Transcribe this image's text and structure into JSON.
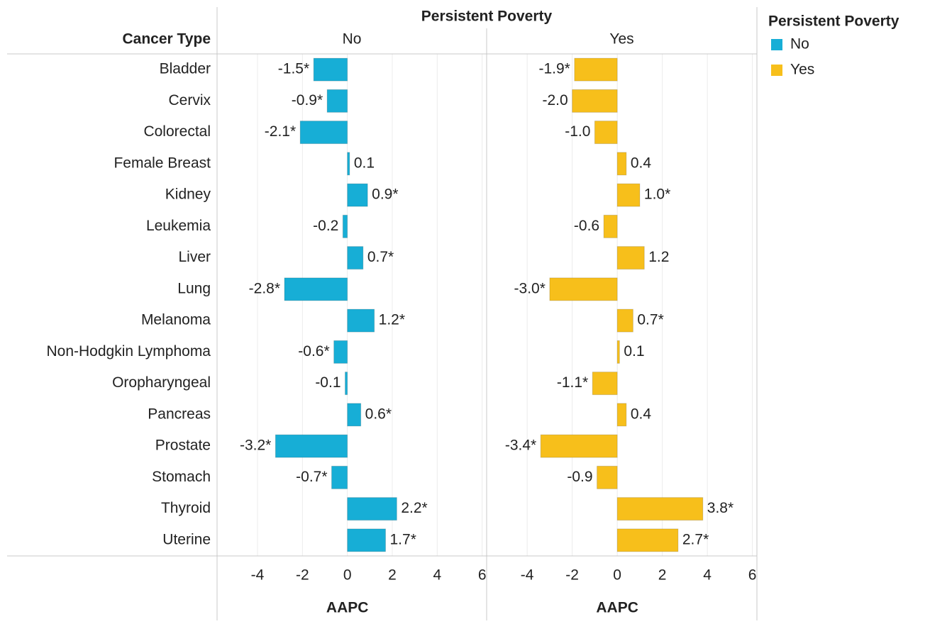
{
  "chart_data": {
    "type": "bar",
    "orientation": "horizontal",
    "column_header": "Persistent Poverty",
    "row_header": "Cancer Type",
    "legend_title": "Persistent Poverty",
    "legend_position": "top-right",
    "x_label": "AAPC",
    "categories": [
      "Bladder",
      "Cervix",
      "Colorectal",
      "Female Breast",
      "Kidney",
      "Leukemia",
      "Liver",
      "Lung",
      "Melanoma",
      "Non-Hodgkin Lymphoma",
      "Oropharyngeal",
      "Pancreas",
      "Prostate",
      "Stomach",
      "Thyroid",
      "Uterine"
    ],
    "series": [
      {
        "name": "No",
        "color": "#17aed6",
        "values": [
          -1.5,
          -0.9,
          -2.1,
          0.1,
          0.9,
          -0.2,
          0.7,
          -2.8,
          1.2,
          -0.6,
          -0.1,
          0.6,
          -3.2,
          -0.7,
          2.2,
          1.7
        ],
        "value_labels": [
          "-1.5*",
          "-0.9*",
          "-2.1*",
          "0.1",
          "0.9*",
          "-0.2",
          "0.7*",
          "-2.8*",
          "1.2*",
          "-0.6*",
          "-0.1",
          "0.6*",
          "-3.2*",
          "-0.7*",
          "2.2*",
          "1.7*"
        ]
      },
      {
        "name": "Yes",
        "color": "#f7bf1b",
        "values": [
          -1.9,
          -2.0,
          -1.0,
          0.4,
          1.0,
          -0.6,
          1.2,
          -3.0,
          0.7,
          0.1,
          -1.1,
          0.4,
          -3.4,
          -0.9,
          3.8,
          2.7
        ],
        "value_labels": [
          "-1.9*",
          "-2.0",
          "-1.0",
          "0.4",
          "1.0*",
          "-0.6",
          "1.2",
          "-3.0*",
          "0.7*",
          "0.1",
          "-1.1*",
          "0.4",
          "-3.4*",
          "-0.9",
          "3.8*",
          "2.7*"
        ]
      }
    ],
    "xlim": [
      -5.8,
      6.2
    ],
    "xticks": [
      -4,
      -2,
      0,
      2,
      4,
      6
    ],
    "grid": true
  }
}
